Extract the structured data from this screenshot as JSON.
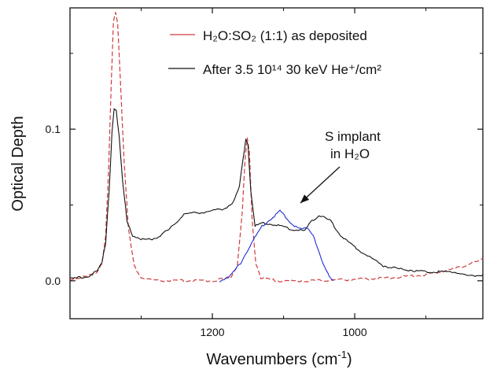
{
  "chart_data": {
    "type": "line",
    "xlabel": "Wavenumbers (cm",
    "xlabel_sup": "-1",
    "xlabel_end": ")",
    "ylabel": "Optical Depth",
    "xlim": [
      1400,
      820
    ],
    "ylim": [
      -0.025,
      0.18
    ],
    "x_reversed": true,
    "x_ticks": [
      {
        "value": 1200,
        "label": "1200"
      },
      {
        "value": 1000,
        "label": "1000"
      }
    ],
    "y_ticks": [
      {
        "value": 0.0,
        "label": "0.0"
      },
      {
        "value": 0.1,
        "label": "0.1"
      }
    ],
    "grid": false,
    "legend_position": "top-right",
    "legend": [
      {
        "text": "H₂O:SO₂ (1:1) as deposited",
        "color": "#d03a3a",
        "dash": true
      },
      {
        "text": "After 3.5 10¹⁴ 30 keV He⁺/cm²",
        "color": "#111111",
        "dash": false
      }
    ],
    "annotation": {
      "line1": "S implant",
      "line2": "in H₂O",
      "arrow_to": {
        "x": 1120,
        "y": 0.055
      }
    },
    "series": [
      {
        "name": "H₂O:SO₂ (1:1) as deposited",
        "color": "#d03a3a",
        "style": "dashed",
        "points": [
          [
            1400,
            0.001
          ],
          [
            1375,
            0.003
          ],
          [
            1362,
            0.006
          ],
          [
            1355,
            0.012
          ],
          [
            1350,
            0.03
          ],
          [
            1346,
            0.07
          ],
          [
            1342,
            0.13
          ],
          [
            1339,
            0.17
          ],
          [
            1336,
            0.178
          ],
          [
            1333,
            0.17
          ],
          [
            1329,
            0.13
          ],
          [
            1324,
            0.08
          ],
          [
            1318,
            0.035
          ],
          [
            1310,
            0.01
          ],
          [
            1300,
            0.002
          ],
          [
            1280,
            0.0
          ],
          [
            1240,
            0.0
          ],
          [
            1200,
            0.0
          ],
          [
            1175,
            0.002
          ],
          [
            1165,
            0.01
          ],
          [
            1158,
            0.045
          ],
          [
            1154,
            0.08
          ],
          [
            1151,
            0.094
          ],
          [
            1148,
            0.085
          ],
          [
            1144,
            0.04
          ],
          [
            1139,
            0.012
          ],
          [
            1132,
            0.002
          ],
          [
            1110,
            0.0
          ],
          [
            1060,
            0.0
          ],
          [
            1000,
            0.001
          ],
          [
            950,
            0.002
          ],
          [
            900,
            0.004
          ],
          [
            860,
            0.008
          ],
          [
            820,
            0.014
          ]
        ]
      },
      {
        "name": "After 3.5 10¹⁴ 30 keV He⁺/cm²",
        "color": "#111111",
        "style": "solid",
        "points": [
          [
            1400,
            0.001
          ],
          [
            1375,
            0.003
          ],
          [
            1362,
            0.006
          ],
          [
            1355,
            0.012
          ],
          [
            1350,
            0.025
          ],
          [
            1345,
            0.06
          ],
          [
            1341,
            0.098
          ],
          [
            1338,
            0.114
          ],
          [
            1335,
            0.112
          ],
          [
            1331,
            0.095
          ],
          [
            1326,
            0.065
          ],
          [
            1320,
            0.04
          ],
          [
            1312,
            0.03
          ],
          [
            1300,
            0.027
          ],
          [
            1280,
            0.028
          ],
          [
            1260,
            0.034
          ],
          [
            1240,
            0.044
          ],
          [
            1220,
            0.045
          ],
          [
            1200,
            0.046
          ],
          [
            1182,
            0.048
          ],
          [
            1170,
            0.052
          ],
          [
            1162,
            0.062
          ],
          [
            1157,
            0.08
          ],
          [
            1153,
            0.094
          ],
          [
            1150,
            0.09
          ],
          [
            1146,
            0.06
          ],
          [
            1140,
            0.036
          ],
          [
            1130,
            0.038
          ],
          [
            1110,
            0.037
          ],
          [
            1090,
            0.034
          ],
          [
            1070,
            0.033
          ],
          [
            1060,
            0.04
          ],
          [
            1050,
            0.043
          ],
          [
            1035,
            0.04
          ],
          [
            1020,
            0.03
          ],
          [
            1000,
            0.022
          ],
          [
            980,
            0.016
          ],
          [
            960,
            0.01
          ],
          [
            940,
            0.008
          ],
          [
            900,
            0.006
          ],
          [
            860,
            0.006
          ],
          [
            840,
            0.003
          ],
          [
            820,
            0.004
          ]
        ]
      },
      {
        "name": "S implant in H₂O",
        "color": "#1f2fd4",
        "style": "solid",
        "points": [
          [
            1190,
            0.0
          ],
          [
            1175,
            0.003
          ],
          [
            1160,
            0.012
          ],
          [
            1145,
            0.025
          ],
          [
            1130,
            0.036
          ],
          [
            1115,
            0.042
          ],
          [
            1105,
            0.046
          ],
          [
            1095,
            0.041
          ],
          [
            1085,
            0.036
          ],
          [
            1075,
            0.034
          ],
          [
            1065,
            0.035
          ],
          [
            1058,
            0.03
          ],
          [
            1050,
            0.018
          ],
          [
            1040,
            0.006
          ],
          [
            1030,
            0.0
          ]
        ]
      }
    ]
  }
}
